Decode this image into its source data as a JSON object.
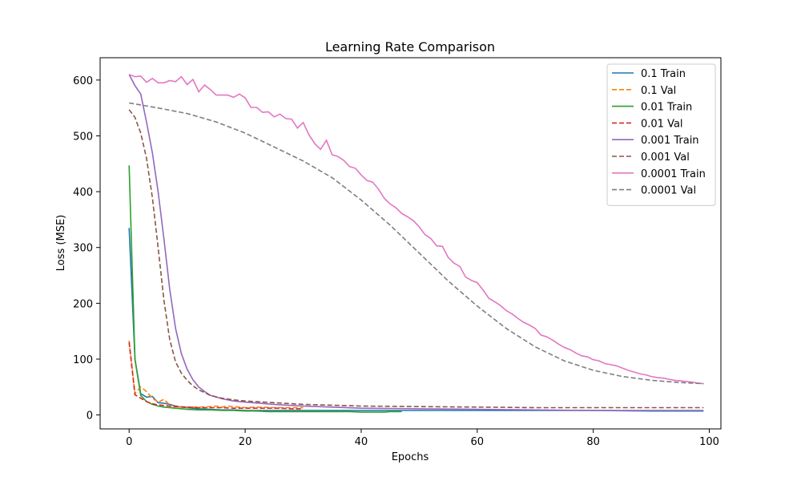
{
  "chart_data": {
    "type": "line",
    "title": "Learning Rate Comparison",
    "xlabel": "Epochs",
    "ylabel": "Loss (MSE)",
    "xlim": [
      -5,
      102
    ],
    "ylim": [
      -25,
      640
    ],
    "xticks": [
      0,
      20,
      40,
      60,
      80,
      100
    ],
    "yticks": [
      0,
      100,
      200,
      300,
      400,
      500,
      600
    ],
    "grid": false,
    "legend_position": "top-right",
    "series": [
      {
        "name": "0.1 Train",
        "color": "#1f77b4",
        "dash": "solid",
        "x": [
          0,
          1,
          2,
          3,
          4,
          5,
          6,
          7,
          8,
          9,
          10,
          12,
          14,
          16,
          18,
          20,
          25,
          30,
          35,
          40,
          45,
          50,
          60,
          70,
          80,
          90,
          99
        ],
        "y": [
          335,
          100,
          38,
          32,
          33,
          22,
          21,
          19,
          16,
          14,
          13,
          11,
          10,
          9,
          9,
          8,
          8,
          8,
          8,
          8,
          8,
          8,
          8,
          8,
          8,
          7,
          7
        ]
      },
      {
        "name": "0.1 Val",
        "color": "#ff7f0e",
        "dash": "dashed",
        "x": [
          0,
          1,
          2,
          3,
          4,
          5,
          6,
          7,
          8,
          9,
          10,
          12,
          14,
          15,
          16,
          17,
          18,
          20,
          22,
          25,
          28,
          30
        ],
        "y": [
          133,
          38,
          50,
          42,
          30,
          23,
          28,
          18,
          15,
          14,
          14,
          14,
          15,
          16,
          14,
          16,
          15,
          13,
          14,
          13,
          13,
          13
        ]
      },
      {
        "name": "0.01 Train",
        "color": "#2ca02c",
        "dash": "solid",
        "x": [
          0,
          1,
          2,
          3,
          4,
          5,
          6,
          8,
          10,
          12,
          14,
          16,
          18,
          20,
          22,
          24,
          26,
          28,
          30,
          32,
          34,
          36,
          38,
          40,
          42,
          44,
          45,
          46,
          47
        ],
        "y": [
          447,
          100,
          35,
          24,
          19,
          16,
          14,
          12,
          10,
          9,
          9,
          8,
          8,
          7,
          7,
          6,
          6,
          6,
          6,
          6,
          6,
          6,
          6,
          5,
          5,
          5,
          6,
          6,
          6
        ]
      },
      {
        "name": "0.01 Val",
        "color": "#d62728",
        "dash": "dashed",
        "x": [
          0,
          1,
          2,
          3,
          4,
          5,
          6,
          8,
          10,
          12,
          14,
          16,
          18,
          20,
          22,
          24,
          26,
          28,
          30
        ],
        "y": [
          130,
          36,
          30,
          24,
          20,
          18,
          17,
          15,
          14,
          13,
          13,
          13,
          12,
          12,
          12,
          12,
          12,
          11,
          11
        ]
      },
      {
        "name": "0.001 Train",
        "color": "#9467bd",
        "dash": "solid",
        "x": [
          0,
          1,
          2,
          3,
          4,
          5,
          6,
          7,
          8,
          9,
          10,
          11,
          12,
          13,
          14,
          16,
          18,
          20,
          25,
          30,
          40,
          50,
          60,
          70,
          80,
          90,
          99
        ],
        "y": [
          610,
          590,
          575,
          525,
          470,
          400,
          315,
          225,
          155,
          110,
          82,
          63,
          50,
          42,
          35,
          29,
          25,
          23,
          19,
          16,
          12,
          11,
          10,
          9,
          8,
          8,
          8
        ]
      },
      {
        "name": "0.001 Val",
        "color": "#8c564b",
        "dash": "dashed",
        "x": [
          0,
          1,
          2,
          3,
          4,
          5,
          6,
          7,
          8,
          9,
          10,
          11,
          12,
          13,
          14,
          16,
          18,
          20,
          25,
          30,
          40,
          50,
          60,
          70,
          80,
          90,
          99
        ],
        "y": [
          547,
          533,
          505,
          460,
          390,
          300,
          205,
          135,
          95,
          75,
          62,
          52,
          45,
          40,
          35,
          30,
          27,
          25,
          22,
          19,
          16,
          15,
          14,
          13,
          13,
          13,
          13
        ]
      },
      {
        "name": "0.0001 Train",
        "color": "#e377c2",
        "dash": "solid",
        "x": [
          0,
          1,
          2,
          3,
          4,
          5,
          6,
          7,
          8,
          9,
          10,
          11,
          12,
          13,
          14,
          15,
          16,
          17,
          18,
          19,
          20,
          21,
          22,
          23,
          24,
          25,
          26,
          27,
          28,
          29,
          30,
          31,
          32,
          33,
          34,
          35,
          36,
          37,
          38,
          39,
          40,
          41,
          42,
          43,
          44,
          45,
          46,
          47,
          48,
          49,
          50,
          51,
          52,
          53,
          54,
          55,
          56,
          57,
          58,
          59,
          60,
          61,
          62,
          63,
          64,
          65,
          66,
          67,
          68,
          69,
          70,
          71,
          72,
          73,
          74,
          75,
          76,
          77,
          78,
          79,
          80,
          81,
          82,
          83,
          84,
          85,
          86,
          87,
          88,
          89,
          90,
          91,
          92,
          93,
          94,
          95,
          96,
          97,
          98,
          99
        ],
        "y": [
          610,
          606,
          607,
          596,
          603,
          595,
          595,
          599,
          597,
          606,
          592,
          601,
          579,
          591,
          583,
          573,
          573,
          573,
          569,
          575,
          568,
          551,
          551,
          542,
          543,
          534,
          539,
          531,
          530,
          514,
          524,
          502,
          486,
          476,
          492,
          466,
          463,
          456,
          445,
          442,
          430,
          420,
          417,
          404,
          388,
          378,
          371,
          361,
          355,
          348,
          337,
          323,
          316,
          303,
          302,
          282,
          272,
          266,
          247,
          241,
          237,
          224,
          209,
          203,
          196,
          187,
          181,
          173,
          166,
          161,
          155,
          143,
          140,
          134,
          127,
          121,
          117,
          111,
          106,
          104,
          99,
          97,
          92,
          90,
          88,
          84,
          80,
          77,
          74,
          72,
          69,
          67,
          66,
          64,
          62,
          61,
          60,
          59,
          57,
          56
        ]
      },
      {
        "name": "0.0001 Val",
        "color": "#7f7f7f",
        "dash": "dashed",
        "x": [
          0,
          5,
          10,
          15,
          20,
          25,
          30,
          35,
          40,
          45,
          50,
          55,
          60,
          65,
          70,
          75,
          80,
          85,
          90,
          95,
          99
        ],
        "y": [
          559,
          550,
          540,
          525,
          505,
          480,
          455,
          425,
          385,
          340,
          290,
          240,
          195,
          155,
          122,
          97,
          80,
          69,
          62,
          58,
          56
        ]
      }
    ]
  }
}
